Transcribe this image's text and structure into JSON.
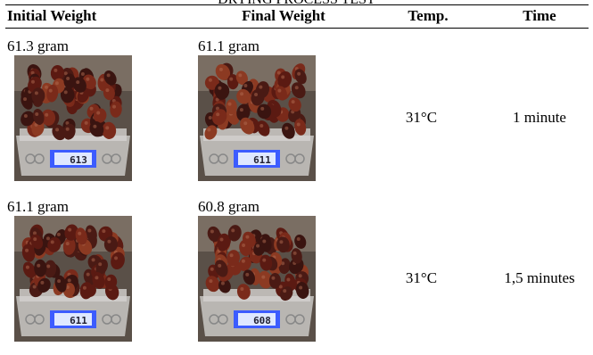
{
  "title": "DRYING PROCESS TEST",
  "table": {
    "header": [
      "Initial Weight",
      "Final Weight",
      "Temp.",
      "Time"
    ],
    "rows": [
      {
        "initial": "61.3 gram",
        "initial_display": "613",
        "final": "61.1 gram",
        "final_display": "611",
        "temp": "31°C",
        "time": "1 minute"
      },
      {
        "initial": "61.1 gram",
        "initial_display": "611",
        "final": "60.8 gram",
        "final_display": "608",
        "temp": "31°C",
        "time": "1,5 minutes"
      }
    ]
  }
}
